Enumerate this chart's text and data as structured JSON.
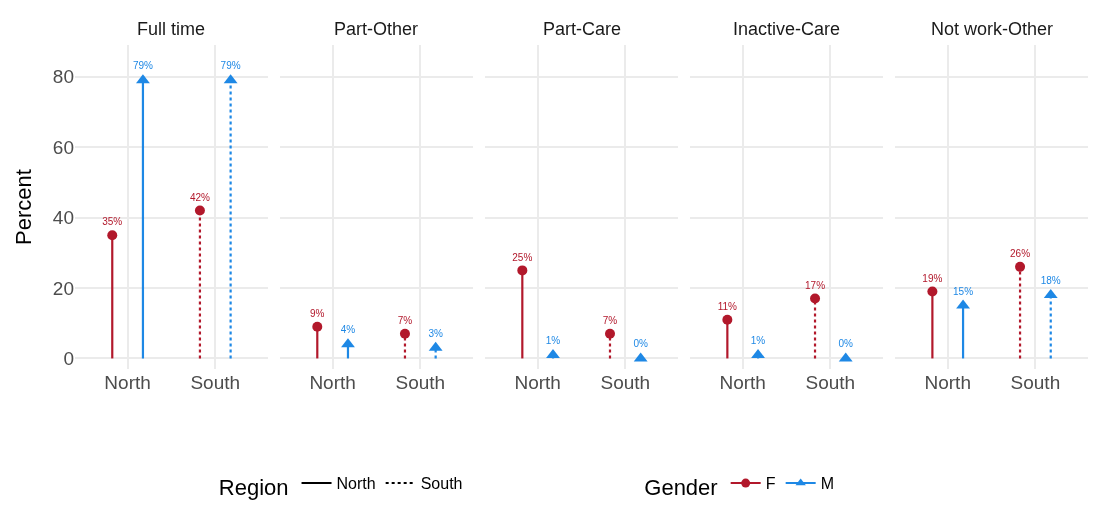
{
  "chart_data": [
    {
      "type": "lollipop",
      "title": "Full time",
      "ylabel": "Percent",
      "categories": [
        "North",
        "South"
      ],
      "line_style": [
        "solid",
        "dashed"
      ],
      "legend": "bottom",
      "legend_title": [
        "Region",
        "Gender"
      ],
      "grid": true,
      "ylim": [
        -3,
        89
      ],
      "yticks": [
        0,
        20,
        40,
        60,
        80
      ],
      "series": [
        {
          "name": "F",
          "color": "#b2182b",
          "marker": "circle",
          "values": [
            35,
            42
          ],
          "value_labels": [
            "35%",
            "42%"
          ]
        },
        {
          "name": "M",
          "color": "#1e88e5",
          "marker": "triangle",
          "values": [
            79,
            79
          ],
          "value_labels": [
            "79%",
            "79%"
          ]
        }
      ]
    },
    {
      "type": "lollipop",
      "title": "Part-Other",
      "categories": [
        "North",
        "South"
      ],
      "line_style": [
        "solid",
        "dashed"
      ],
      "grid": true,
      "tick_labels": "x",
      "ylim": [
        -3,
        89
      ],
      "yticks": [
        0,
        20,
        40,
        60,
        80
      ],
      "series": [
        {
          "color": "#b2182b",
          "marker": "circle",
          "values": [
            9,
            7
          ],
          "value_labels": [
            "9%",
            "7%"
          ]
        },
        {
          "color": "#1e88e5",
          "marker": "triangle",
          "values": [
            4,
            3
          ],
          "value_labels": [
            "4%",
            "3%"
          ]
        }
      ]
    },
    {
      "type": "lollipop",
      "title": "Part-Care",
      "categories": [
        "North",
        "South"
      ],
      "line_style": [
        "solid",
        "dashed"
      ],
      "grid": true,
      "tick_labels": "x",
      "ylim": [
        -3,
        89
      ],
      "yticks": [
        0,
        20,
        40,
        60,
        80
      ],
      "series": [
        {
          "color": "#b2182b",
          "marker": "circle",
          "values": [
            25,
            7
          ],
          "value_labels": [
            "25%",
            "7%"
          ]
        },
        {
          "color": "#1e88e5",
          "marker": "triangle",
          "values": [
            1,
            0
          ],
          "value_labels": [
            "1%",
            "0%"
          ]
        }
      ]
    },
    {
      "type": "lollipop",
      "title": "Inactive-Care",
      "categories": [
        "North",
        "South"
      ],
      "line_style": [
        "solid",
        "dashed"
      ],
      "grid": true,
      "tick_labels": "x",
      "ylim": [
        -3,
        89
      ],
      "yticks": [
        0,
        20,
        40,
        60,
        80
      ],
      "series": [
        {
          "color": "#b2182b",
          "marker": "circle",
          "values": [
            11,
            17
          ],
          "value_labels": [
            "11%",
            "17%"
          ]
        },
        {
          "color": "#1e88e5",
          "marker": "triangle",
          "values": [
            1,
            0
          ],
          "value_labels": [
            "1%",
            "0%"
          ]
        }
      ]
    },
    {
      "type": "lollipop",
      "title": "Not work-Other",
      "categories": [
        "North",
        "South"
      ],
      "line_style": [
        "solid",
        "dashed"
      ],
      "grid": true,
      "tick_labels": "x",
      "ylim": [
        -3,
        89
      ],
      "yticks": [
        0,
        20,
        40,
        60,
        80
      ],
      "series": [
        {
          "color": "#b2182b",
          "marker": "circle",
          "values": [
            19,
            26
          ],
          "value_labels": [
            "19%",
            "26%"
          ]
        },
        {
          "color": "#1e88e5",
          "marker": "triangle",
          "values": [
            15,
            18
          ],
          "value_labels": [
            "15%",
            "18%"
          ]
        }
      ]
    }
  ]
}
